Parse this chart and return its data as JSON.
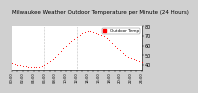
{
  "title": "Milwaukee Weather Outdoor Temperature per Minute (24 Hours)",
  "bg_color": "#d0d0d0",
  "plot_bg_color": "#ffffff",
  "line_color": "#ff0000",
  "legend_color": "#ff0000",
  "x_values": [
    0,
    30,
    60,
    90,
    120,
    150,
    180,
    210,
    240,
    270,
    300,
    330,
    360,
    390,
    420,
    450,
    480,
    510,
    540,
    570,
    600,
    630,
    660,
    690,
    720,
    750,
    780,
    810,
    840,
    870,
    900,
    930,
    960,
    990,
    1020,
    1050,
    1080,
    1110,
    1140,
    1170,
    1200,
    1230,
    1260,
    1290,
    1320,
    1350,
    1380,
    1410,
    1440
  ],
  "y_values": [
    42,
    41,
    40,
    40,
    39,
    39,
    38,
    38,
    38,
    38,
    38,
    39,
    40,
    42,
    44,
    46,
    48,
    51,
    54,
    57,
    60,
    63,
    65,
    67,
    69,
    71,
    73,
    74,
    75,
    75,
    74,
    73,
    72,
    71,
    70,
    68,
    66,
    63,
    60,
    57,
    55,
    52,
    50,
    48,
    47,
    46,
    45,
    44,
    43
  ],
  "ylim": [
    35,
    80
  ],
  "yticks": [
    40,
    50,
    60,
    70,
    80
  ],
  "vline1": 360,
  "vline2": 720,
  "title_fontsize": 4.0,
  "tick_fontsize": 3.5,
  "legend_label": "Outdoor Temp",
  "legend_fontsize": 3.0,
  "dot_size": 0.6,
  "xlim": [
    0,
    1440
  ]
}
